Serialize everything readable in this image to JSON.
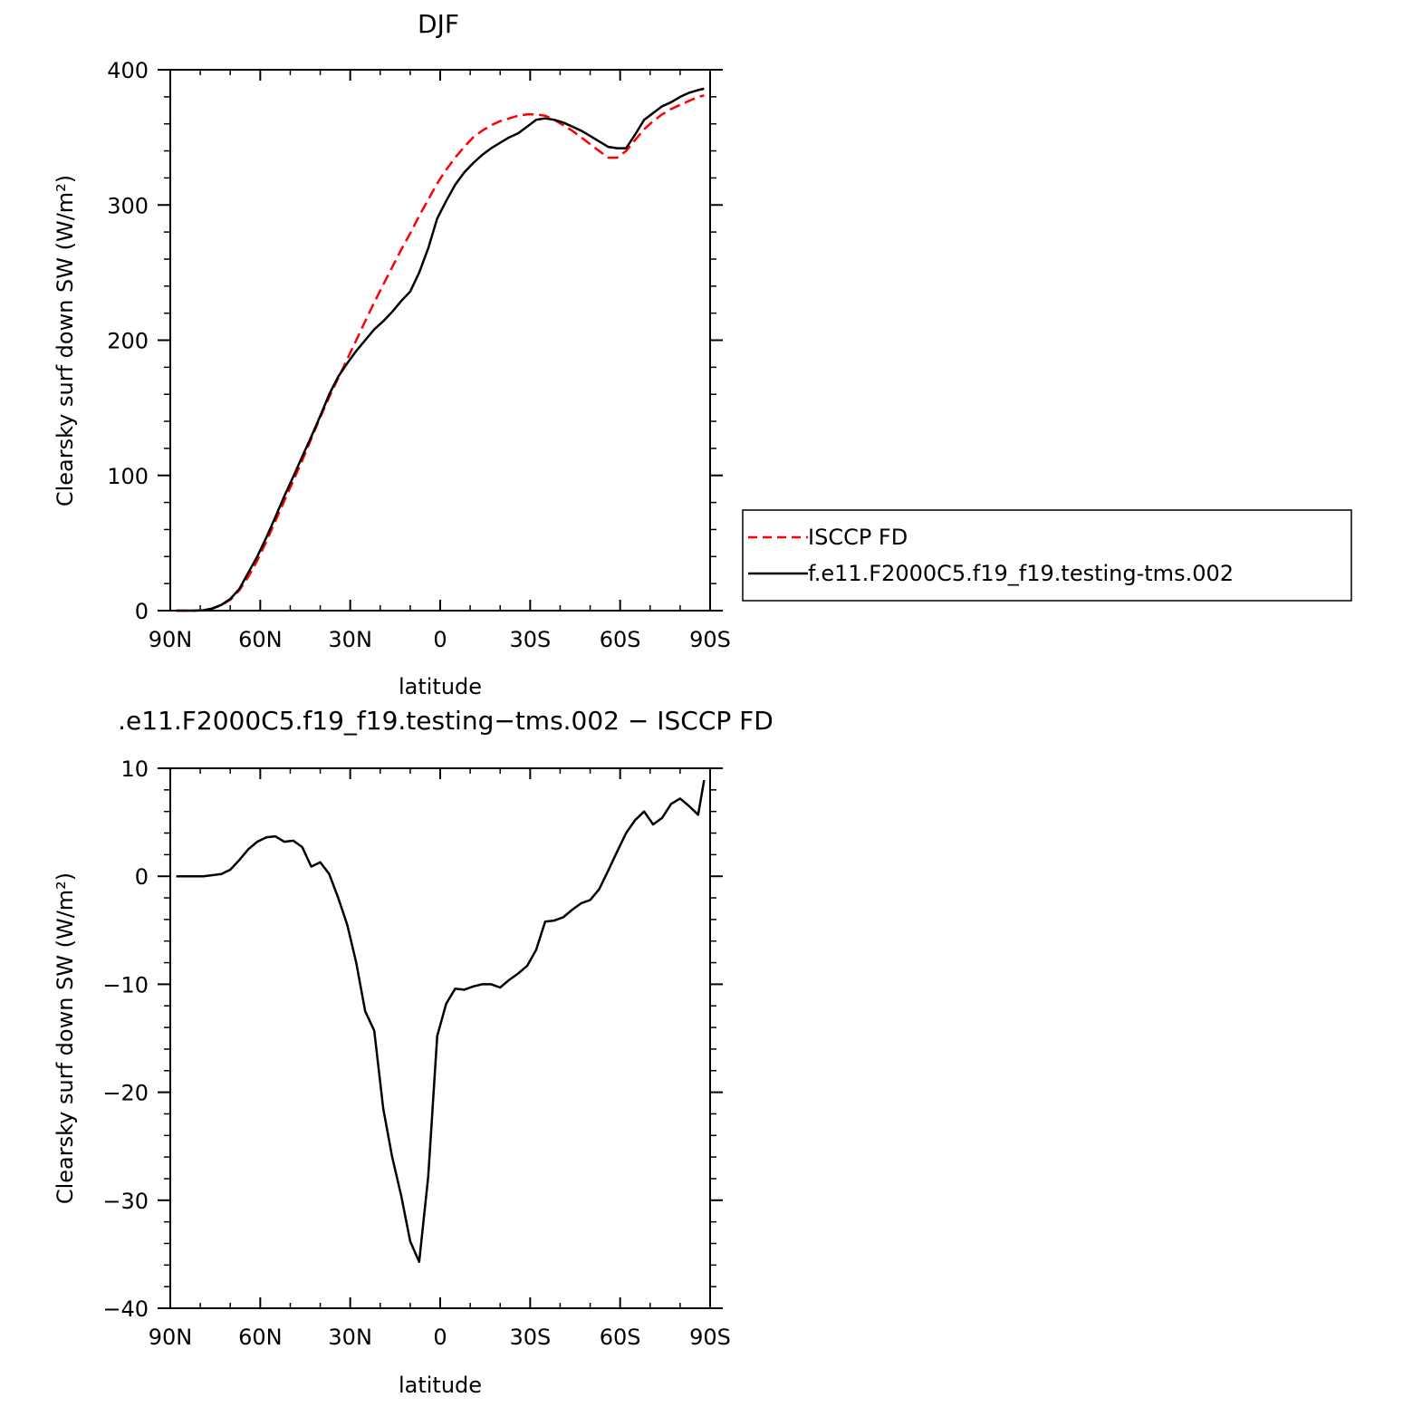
{
  "chart_data": [
    {
      "type": "line",
      "title": "DJF",
      "xlabel": "latitude",
      "ylabel": "Clearsky surf down SW (W/m²)",
      "xlim": [
        -90,
        90
      ],
      "ylim": [
        0,
        400
      ],
      "xticks": [
        {
          "value": -90,
          "label": "90N"
        },
        {
          "value": -60,
          "label": "60N"
        },
        {
          "value": -30,
          "label": "30N"
        },
        {
          "value": 0,
          "label": "0"
        },
        {
          "value": 30,
          "label": "30S"
        },
        {
          "value": 60,
          "label": "60S"
        },
        {
          "value": 90,
          "label": "90S"
        }
      ],
      "yticks": [
        {
          "value": 0,
          "label": "0"
        },
        {
          "value": 100,
          "label": "100"
        },
        {
          "value": 200,
          "label": "200"
        },
        {
          "value": 300,
          "label": "300"
        },
        {
          "value": 400,
          "label": "400"
        }
      ],
      "legend_position": "right-middle",
      "series": [
        {
          "name": "ISCCP FD",
          "color": "#ff0000",
          "style": "dashed",
          "x": [
            -88,
            -85,
            -82,
            -79,
            -76,
            -73,
            -70,
            -67,
            -64,
            -61,
            -58,
            -55,
            -52,
            -49,
            -46,
            -43,
            -40,
            -37,
            -34,
            -31,
            -28,
            -25,
            -22,
            -19,
            -16,
            -13,
            -10,
            -7,
            -4,
            -1,
            2,
            5,
            8,
            11,
            14,
            17,
            20,
            23,
            26,
            29,
            32,
            35,
            38,
            41,
            44,
            47,
            50,
            53,
            56,
            59,
            62,
            65,
            68,
            71,
            74,
            77,
            80,
            83,
            86,
            88
          ],
          "y": [
            0,
            0,
            0,
            0.3,
            1.5,
            4,
            8,
            15,
            25,
            37,
            51,
            66,
            81,
            96,
            111,
            127,
            143,
            158,
            172,
            186,
            200,
            214,
            228,
            241,
            254,
            267,
            279,
            292,
            304,
            316,
            326,
            335,
            343,
            350,
            355,
            359,
            362,
            364,
            366,
            367,
            367,
            366,
            363,
            359,
            355,
            350,
            345,
            340,
            335,
            335,
            340,
            348,
            356,
            362,
            367,
            371,
            374,
            377,
            380,
            381
          ]
        },
        {
          "name": "f.e11.F2000C5.f19_f19.testing-tms.002",
          "color": "#000000",
          "style": "solid",
          "x": [
            -88,
            -85,
            -82,
            -79,
            -76,
            -73,
            -70,
            -67,
            -64,
            -61,
            -58,
            -55,
            -52,
            -49,
            -46,
            -43,
            -40,
            -37,
            -34,
            -31,
            -28,
            -25,
            -22,
            -19,
            -16,
            -13,
            -10,
            -7,
            -4,
            -1,
            2,
            5,
            8,
            11,
            14,
            17,
            20,
            23,
            26,
            29,
            32,
            35,
            38,
            41,
            44,
            47,
            50,
            53,
            56,
            59,
            62,
            65,
            68,
            71,
            74,
            77,
            80,
            83,
            86,
            88
          ],
          "y": [
            0,
            0,
            0,
            0.3,
            1.6,
            4.2,
            8.6,
            16,
            28,
            40,
            54,
            69,
            84.5,
            99,
            114,
            128.5,
            144,
            160,
            173,
            183,
            192,
            200,
            208,
            214,
            221,
            229,
            236,
            250,
            268,
            290,
            303,
            315,
            324,
            331,
            337,
            342,
            346,
            350,
            353,
            358,
            363,
            364,
            363,
            361,
            358,
            355,
            351,
            347,
            343,
            342,
            342,
            352,
            363,
            368,
            373,
            376,
            380,
            383,
            385,
            386
          ]
        }
      ]
    },
    {
      "type": "line",
      "title": ".e11.F2000C5.f19_f19.testing−tms.002 − ISCCP FD",
      "xlabel": "latitude",
      "ylabel": "Clearsky surf down SW (W/m²)",
      "xlim": [
        -90,
        90
      ],
      "ylim": [
        -40,
        10
      ],
      "xticks": [
        {
          "value": -90,
          "label": "90N"
        },
        {
          "value": -60,
          "label": "60N"
        },
        {
          "value": -30,
          "label": "30N"
        },
        {
          "value": 0,
          "label": "0"
        },
        {
          "value": 30,
          "label": "30S"
        },
        {
          "value": 60,
          "label": "60S"
        },
        {
          "value": 90,
          "label": "90S"
        }
      ],
      "yticks": [
        {
          "value": 10,
          "label": "10"
        },
        {
          "value": 0,
          "label": "0"
        },
        {
          "value": -10,
          "label": "−10"
        },
        {
          "value": -20,
          "label": "−20"
        },
        {
          "value": -30,
          "label": "−30"
        },
        {
          "value": -40,
          "label": "−40"
        }
      ],
      "series": [
        {
          "color": "#000000",
          "style": "solid",
          "x": [
            -88,
            -85,
            -82,
            -79,
            -76,
            -73,
            -70,
            -67,
            -64,
            -61,
            -58,
            -55,
            -52,
            -49,
            -46,
            -43,
            -40,
            -37,
            -34,
            -31,
            -28,
            -25,
            -22,
            -19,
            -16,
            -13,
            -10,
            -7,
            -4,
            -1,
            2,
            5,
            8,
            11,
            14,
            17,
            20,
            23,
            26,
            29,
            32,
            35,
            38,
            41,
            44,
            47,
            50,
            53,
            56,
            59,
            62,
            65,
            68,
            71,
            74,
            77,
            80,
            83,
            86,
            88
          ],
          "y": [
            0,
            0,
            0,
            0,
            0.1,
            0.2,
            0.6,
            1.5,
            2.5,
            3.2,
            3.6,
            3.7,
            3.2,
            3.3,
            2.7,
            0.9,
            1.3,
            0.2,
            -2,
            -4.5,
            -8,
            -12.5,
            -14.3,
            -21.5,
            -26,
            -29.6,
            -33.8,
            -35.7,
            -27.8,
            -14.8,
            -11.8,
            -10.4,
            -10.5,
            -10.2,
            -10.0,
            -10.0,
            -10.3,
            -9.6,
            -9.0,
            -8.3,
            -6.8,
            -4.2,
            -4.1,
            -3.8,
            -3.1,
            -2.5,
            -2.2,
            -1.2,
            0.5,
            2.3,
            4.0,
            5.2,
            6.0,
            4.8,
            5.4,
            6.7,
            7.2,
            6.5,
            5.7,
            8.9
          ]
        }
      ]
    }
  ]
}
